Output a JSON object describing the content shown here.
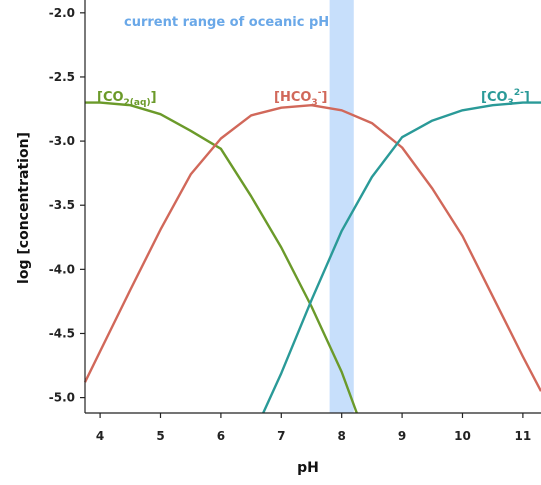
{
  "chart_data": {
    "type": "line",
    "title": "",
    "xlabel": "pH",
    "ylabel": "log [concentration]",
    "xlim": [
      3.75,
      11.3
    ],
    "ylim": [
      -5.12,
      -1.9
    ],
    "xticks": [
      "4",
      "5",
      "6",
      "7",
      "8",
      "9",
      "10",
      "11"
    ],
    "yticks": [
      "-2.0",
      "-2.5",
      "-3.0",
      "-3.5",
      "-4.0",
      "-4.5",
      "-5.0"
    ],
    "grid": false,
    "colors": {
      "co2": "#6b9a2a",
      "hco3": "#d1685a",
      "co3": "#2a9a98",
      "band": "#c7dffb",
      "band_label": "#6aa8e8"
    },
    "band": {
      "label": "current range of oceanic pH",
      "x_start": 7.8,
      "x_end": 8.2
    },
    "series": [
      {
        "label_main": "[CO",
        "label_sub": "2(aq)",
        "label_sup": "",
        "label_end": "]",
        "color_key": "co2",
        "x": [
          3.75,
          4.0,
          4.5,
          5.0,
          5.5,
          6.0,
          6.5,
          7.0,
          7.5,
          8.0,
          8.25
        ],
        "y": [
          -2.7,
          -2.7,
          -2.72,
          -2.79,
          -2.92,
          -3.06,
          -3.43,
          -3.83,
          -4.29,
          -4.8,
          -5.12
        ]
      },
      {
        "label_main": "[HCO",
        "label_sub": "3",
        "label_sup": "-",
        "label_end": "]",
        "color_key": "hco3",
        "x": [
          3.75,
          4.0,
          4.5,
          5.0,
          5.5,
          6.0,
          6.5,
          7.0,
          7.5,
          8.0,
          8.5,
          9.0,
          9.5,
          10.0,
          10.5,
          11.0,
          11.3
        ],
        "y": [
          -4.88,
          -4.64,
          -4.16,
          -3.69,
          -3.26,
          -2.98,
          -2.8,
          -2.74,
          -2.72,
          -2.76,
          -2.86,
          -3.05,
          -3.37,
          -3.74,
          -4.21,
          -4.68,
          -4.95
        ]
      },
      {
        "label_main": "[CO",
        "label_sub": "3",
        "label_sup": "2-",
        "label_end": "]",
        "color_key": "co3",
        "x": [
          6.7,
          7.0,
          7.5,
          8.0,
          8.5,
          9.0,
          9.5,
          10.0,
          10.5,
          11.0,
          11.3
        ],
        "y": [
          -5.12,
          -4.81,
          -4.24,
          -3.7,
          -3.28,
          -2.97,
          -2.84,
          -2.76,
          -2.72,
          -2.7,
          -2.7
        ]
      }
    ]
  }
}
